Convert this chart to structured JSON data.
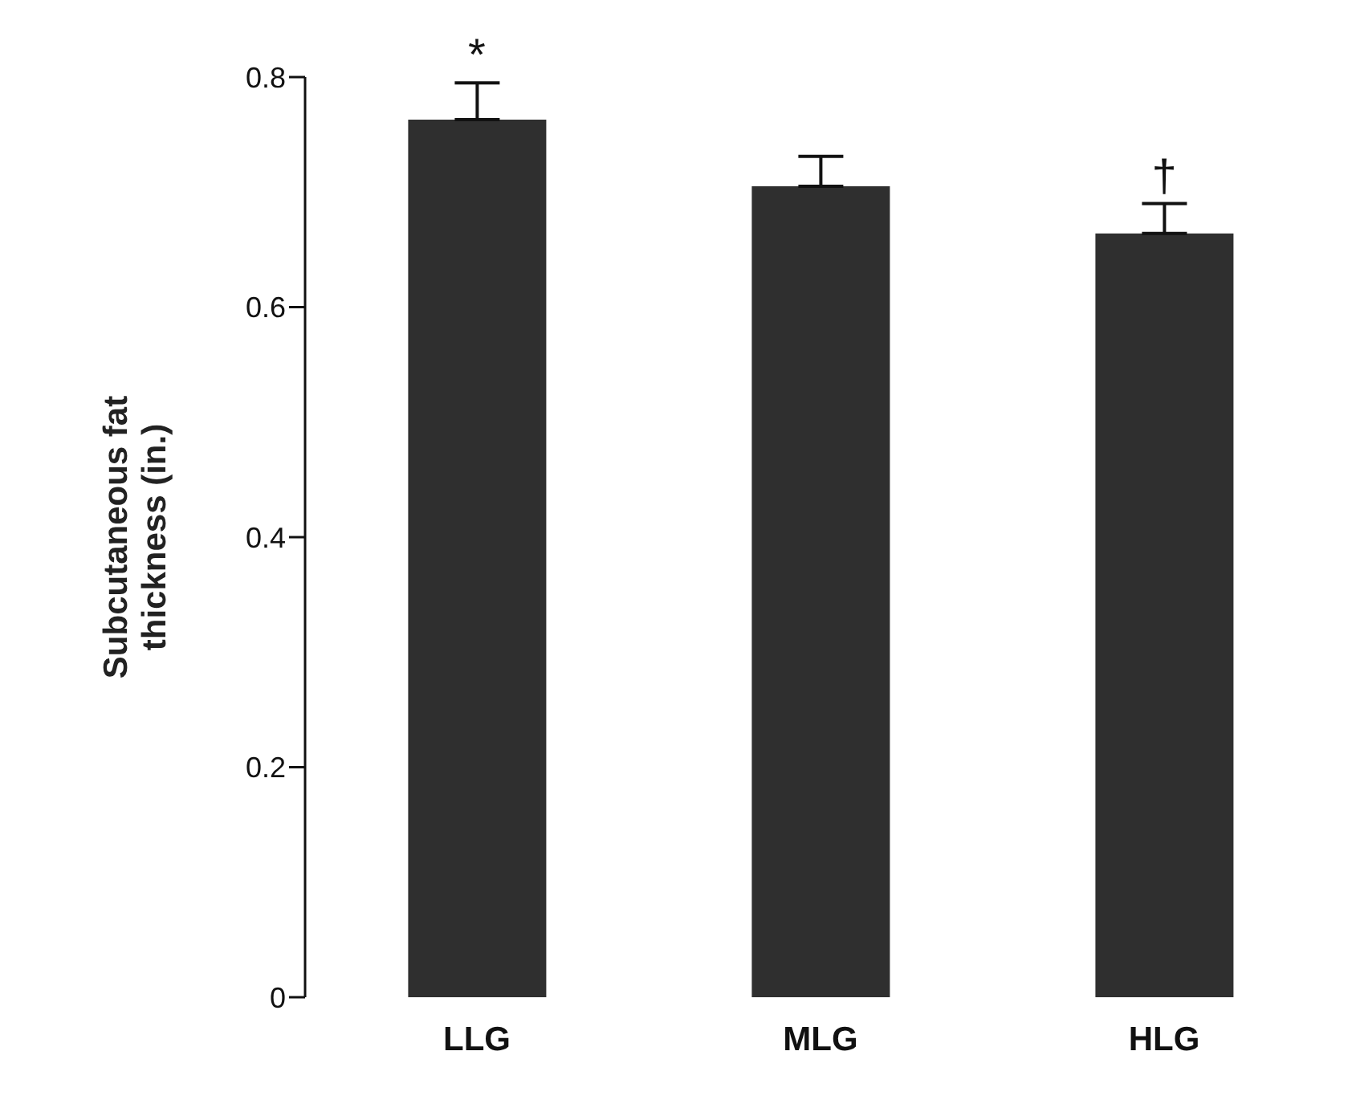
{
  "chart_data": {
    "type": "bar",
    "categories": [
      "LLG",
      "MLG",
      "HLG"
    ],
    "values": [
      0.763,
      0.705,
      0.664
    ],
    "errors": [
      [
        0.763,
        0.795
      ],
      [
        0.705,
        0.731
      ],
      [
        0.664,
        0.69
      ]
    ],
    "color": "#2f2f2f",
    "ylabel": "Subcutaneous fat thickness (in.)",
    "ylim": [
      0,
      0.8
    ],
    "yticks": [
      0,
      0.2,
      0.4,
      0.6,
      0.8
    ],
    "grid": false,
    "legend": false,
    "annotations": [
      "*",
      "†"
    ]
  }
}
